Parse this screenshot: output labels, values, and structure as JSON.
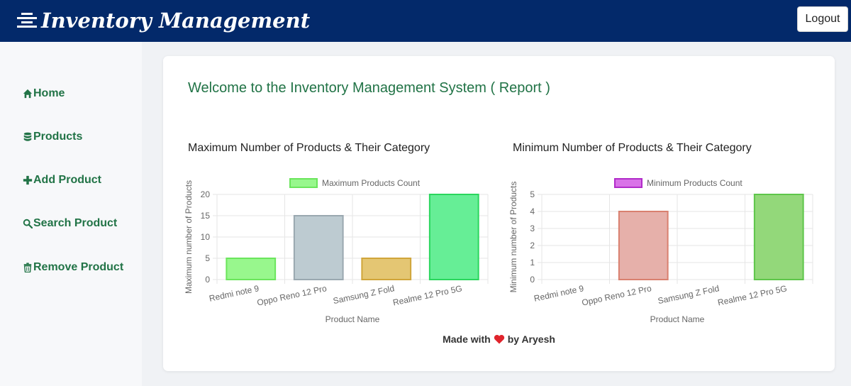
{
  "app": {
    "title": "Inventory Management",
    "logout_label": "Logout"
  },
  "sidebar": {
    "items": [
      {
        "label": "Home",
        "icon": "home-icon"
      },
      {
        "label": "Products",
        "icon": "database-icon"
      },
      {
        "label": "Add Product",
        "icon": "plus-icon"
      },
      {
        "label": "Search Product",
        "icon": "search-icon"
      },
      {
        "label": "Remove Product",
        "icon": "trash-icon"
      }
    ]
  },
  "main": {
    "title": "Welcome to the Inventory Management System ( Report )",
    "left_heading": "Maximum Number of Products & Their Category",
    "right_heading": "Minimum Number of Products & Their Category",
    "footer": {
      "prefix": "Made with",
      "suffix": "by Aryesh"
    }
  },
  "colors": {
    "brand": "#03296a",
    "accent": "#217346"
  },
  "chart_data": [
    {
      "type": "bar",
      "categories": [
        "Redmi note 9",
        "Oppo Reno 12 Pro",
        "Samsung Z Fold",
        "Realme 12 Pro 5G"
      ],
      "series": [
        {
          "name": "Maximum Products Count",
          "values": [
            5,
            15,
            5,
            20
          ]
        }
      ],
      "bar_fill": [
        "#98f78d",
        "#bdcbd1",
        "#e4c673",
        "#66ee96"
      ],
      "bar_stroke": [
        "#6be55c",
        "#9aa8b0",
        "#d0a53a",
        "#2ad65d"
      ],
      "legend_fill": "#98f78d",
      "legend_stroke": "#6be55c",
      "xlabel": "Product Name",
      "ylabel": "Maximum number of Products",
      "ylim": [
        0,
        20
      ],
      "yticks": [
        0,
        5,
        10,
        15,
        20
      ],
      "legend": "top",
      "grid": true
    },
    {
      "type": "bar",
      "categories": [
        "Redmi note 9",
        "Oppo Reno 12 Pro",
        "Samsung Z Fold",
        "Realme 12 Pro 5G"
      ],
      "series": [
        {
          "name": "Minimum Products Count",
          "values": [
            0,
            4,
            0,
            5
          ]
        }
      ],
      "bar_fill": [
        "#e9b0aa",
        "#e6b0aa",
        "#f4c6c0",
        "#93d87a"
      ],
      "bar_stroke": [
        "#d97d70",
        "#d9806f",
        "#d97d70",
        "#5ec64a"
      ],
      "legend_fill": "#d972e8",
      "legend_stroke": "#b12cc9",
      "xlabel": "Product Name",
      "ylabel": "Minimum number of Products",
      "ylim": [
        0,
        5
      ],
      "yticks": [
        0,
        1,
        2,
        3,
        4,
        5
      ],
      "legend": "top",
      "grid": true
    }
  ]
}
